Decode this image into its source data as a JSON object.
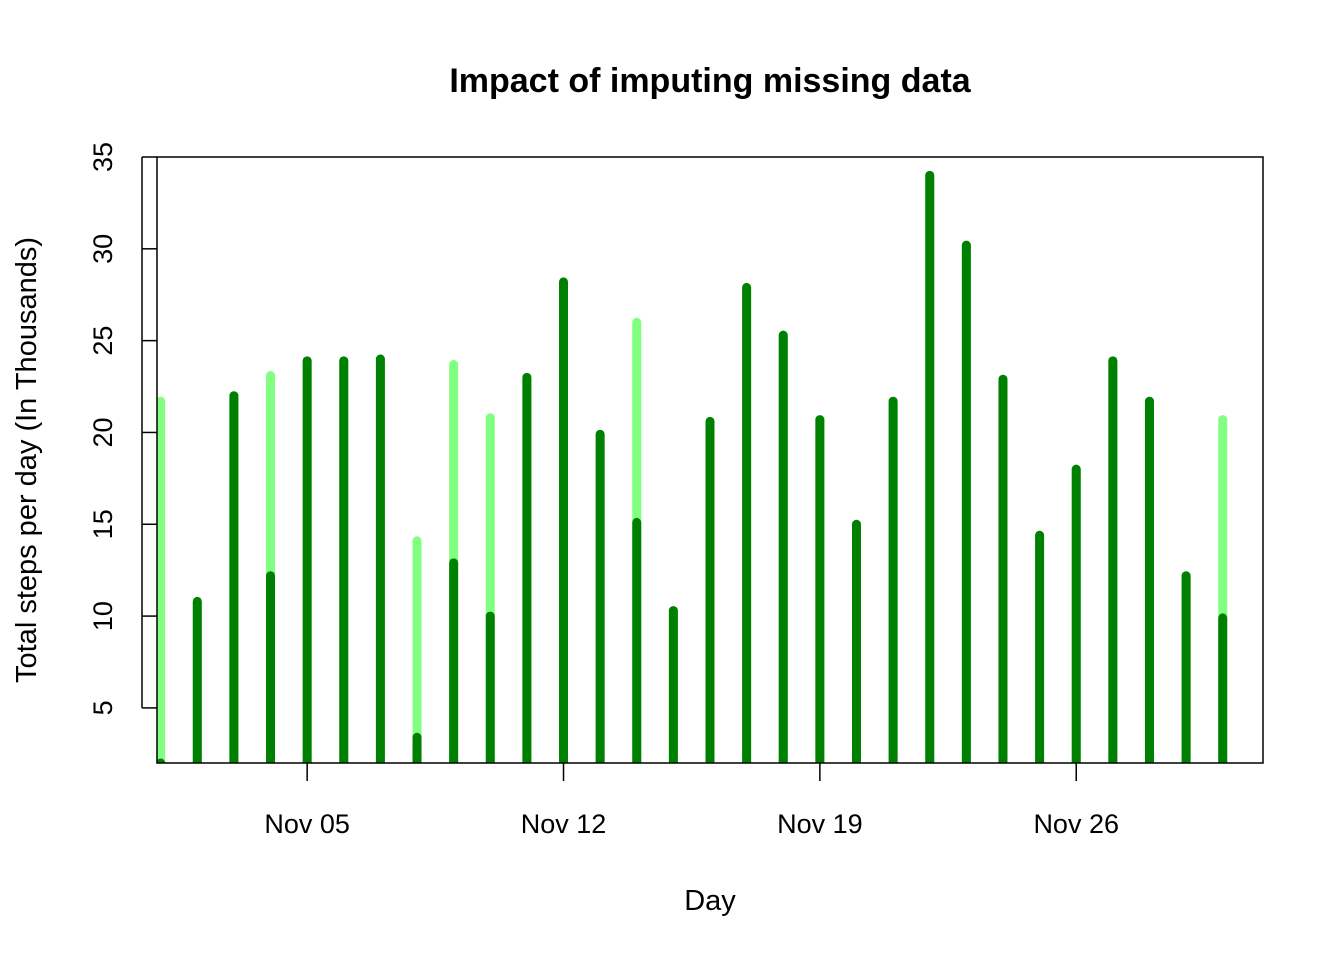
{
  "chart_data": {
    "type": "bar",
    "title": "Impact of imputing missing data",
    "xlabel": "Day",
    "ylabel": "Total steps per day (In Thousands)",
    "x_tick_labels": [
      "Nov 05",
      "Nov 12",
      "Nov 19",
      "Nov 26"
    ],
    "x_tick_positions": [
      5,
      12,
      19,
      26
    ],
    "y_ticks": [
      5,
      10,
      15,
      20,
      25,
      30,
      35
    ],
    "ylim": [
      2,
      35
    ],
    "xlim": [
      0.9,
      31.1
    ],
    "grid": false,
    "days": [
      1,
      2,
      3,
      4,
      5,
      6,
      7,
      8,
      9,
      10,
      11,
      12,
      13,
      14,
      15,
      16,
      17,
      18,
      19,
      20,
      21,
      22,
      23,
      24,
      25,
      26,
      27,
      28,
      29,
      30
    ],
    "series": [
      {
        "color": "#80FF80",
        "values": [
          21.7,
          10.8,
          22.0,
          23.1,
          23.9,
          23.9,
          24.0,
          14.1,
          23.7,
          20.8,
          23.0,
          28.2,
          19.9,
          26.0,
          10.3,
          20.6,
          27.9,
          25.3,
          20.7,
          15.0,
          21.7,
          34.0,
          30.2,
          22.9,
          14.4,
          18.0,
          23.9,
          21.7,
          12.2,
          20.7
        ]
      },
      {
        "color": "#008000",
        "values": [
          0,
          10.8,
          22.0,
          12.2,
          23.9,
          23.9,
          24.0,
          3.4,
          12.9,
          10.0,
          23.0,
          28.2,
          19.9,
          15.1,
          10.3,
          20.6,
          27.9,
          25.3,
          20.7,
          15.0,
          21.7,
          34.0,
          30.2,
          22.9,
          14.4,
          18.0,
          23.9,
          21.7,
          12.2,
          9.9
        ]
      }
    ]
  }
}
